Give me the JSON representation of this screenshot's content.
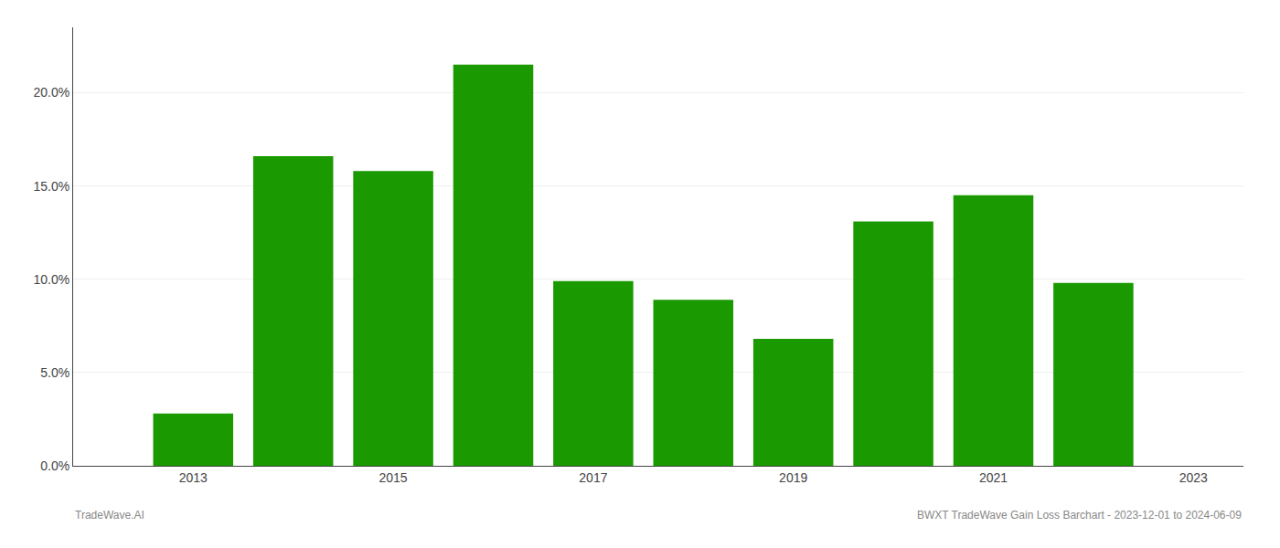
{
  "chart_data": {
    "type": "bar",
    "x": [
      2013,
      2014,
      2015,
      2016,
      2017,
      2018,
      2019,
      2020,
      2021,
      2022
    ],
    "values": [
      0.028,
      0.166,
      0.158,
      0.215,
      0.099,
      0.089,
      0.068,
      0.131,
      0.145,
      0.098
    ],
    "color": "#1a9a00",
    "xlim": [
      2011.8,
      2023.5
    ],
    "xticks": [
      2013,
      2015,
      2017,
      2019,
      2021,
      2023
    ],
    "ylim": [
      0,
      0.235
    ],
    "yticks": [
      {
        "value": 0.0,
        "label": "0.0%"
      },
      {
        "value": 0.05,
        "label": "5.0%"
      },
      {
        "value": 0.1,
        "label": "10.0%"
      },
      {
        "value": 0.15,
        "label": "15.0%"
      },
      {
        "value": 0.2,
        "label": "20.0%"
      }
    ],
    "grid": true,
    "annotations": [
      "TradeWave.AI",
      "BWXT TradeWave Gain Loss Barchart - 2023-12-01 to 2024-06-09"
    ]
  }
}
